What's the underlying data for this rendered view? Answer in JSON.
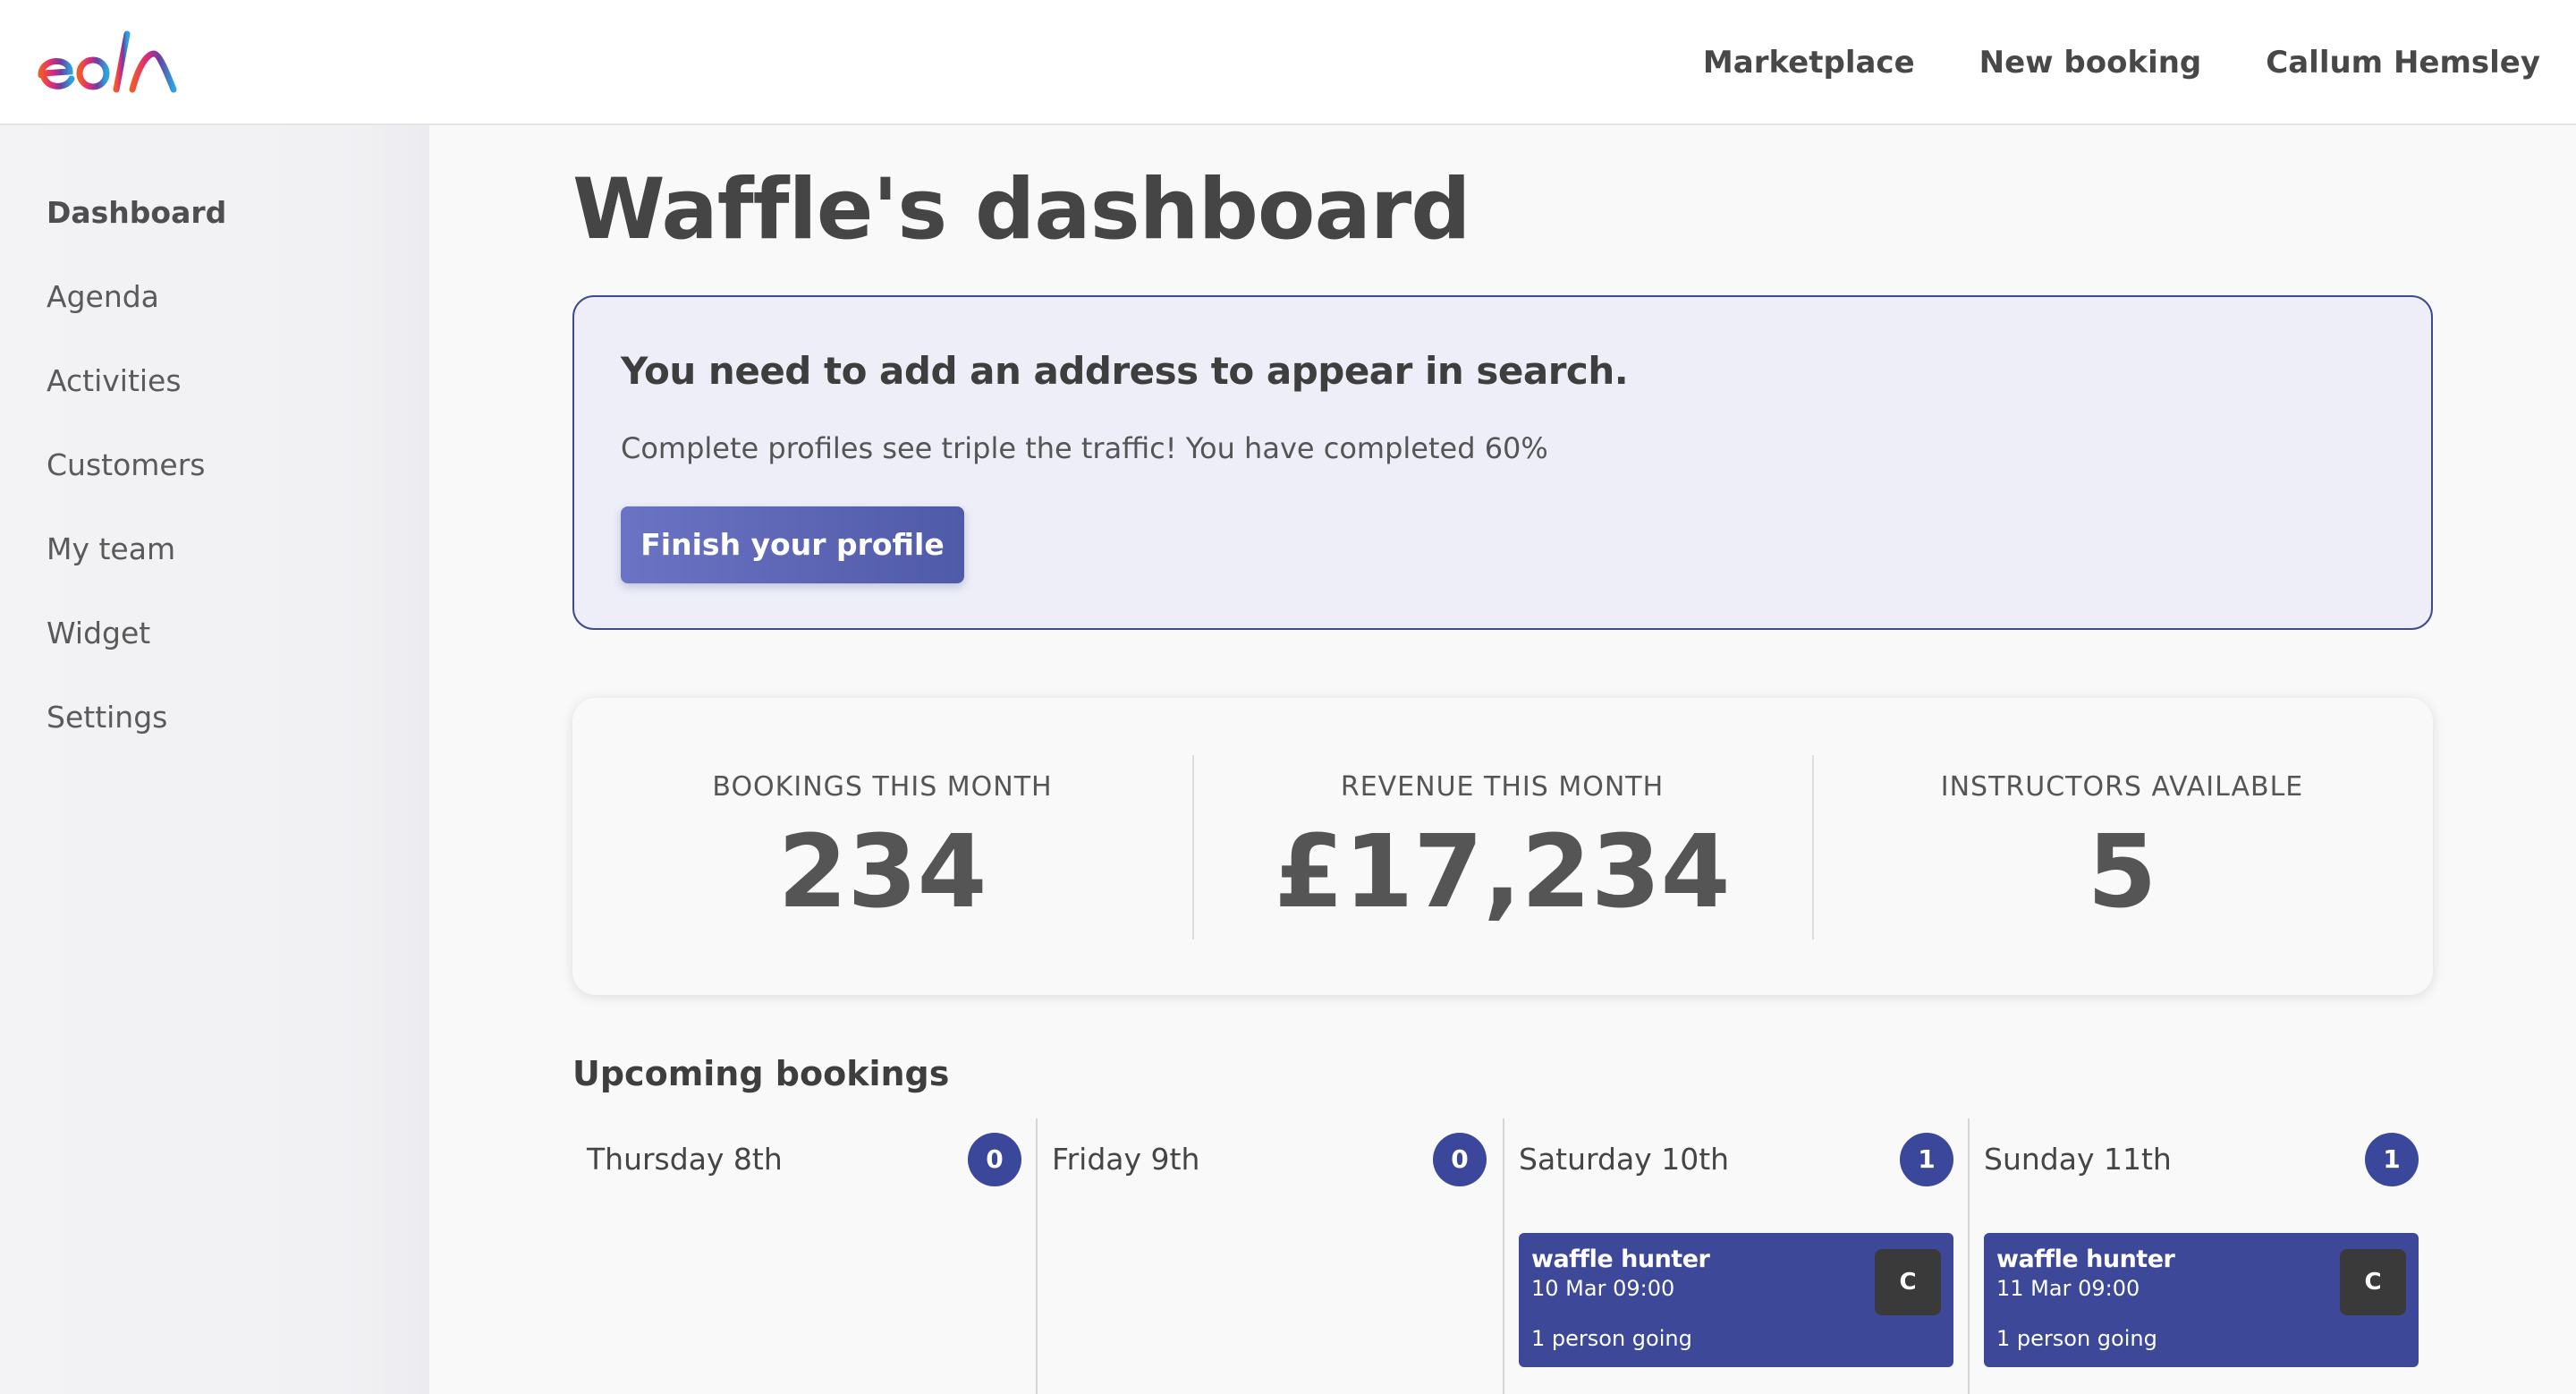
{
  "brand": {
    "logo_text": "eola",
    "colors": [
      "#f05a28",
      "#e0287d",
      "#6b3fa0",
      "#2aa3e0"
    ]
  },
  "topnav": {
    "marketplace": "Marketplace",
    "new_booking": "New booking",
    "user_name": "Callum Hemsley"
  },
  "sidebar": {
    "items": [
      {
        "label": "Dashboard"
      },
      {
        "label": "Agenda"
      },
      {
        "label": "Activities"
      },
      {
        "label": "Customers"
      },
      {
        "label": "My team"
      },
      {
        "label": "Widget"
      },
      {
        "label": "Settings"
      }
    ],
    "active": "Dashboard"
  },
  "page": {
    "title": "Waffle's dashboard"
  },
  "alert": {
    "title": "You need to add an address to appear in search.",
    "text": "Complete profiles see triple the traffic! You have completed 60%",
    "button_label": "Finish your profile",
    "completion_percent": 60
  },
  "stats": [
    {
      "label": "BOOKINGS THIS MONTH",
      "value": "234"
    },
    {
      "label": "REVENUE THIS MONTH",
      "value": "£17,234"
    },
    {
      "label": "INSTRUCTORS AVAILABLE",
      "value": "5"
    }
  ],
  "upcoming": {
    "title": "Upcoming bookings",
    "days": [
      {
        "name": "Thursday 8th",
        "count": "0",
        "bookings": []
      },
      {
        "name": "Friday 9th",
        "count": "0",
        "bookings": []
      },
      {
        "name": "Saturday 10th",
        "count": "1",
        "bookings": [
          {
            "title": "waffle hunter",
            "date": "10 Mar 09:00",
            "going": "1 person going",
            "avatar": "C"
          }
        ]
      },
      {
        "name": "Sunday 11th",
        "count": "1",
        "bookings": [
          {
            "title": "waffle hunter",
            "date": "11 Mar 09:00",
            "going": "1 person going",
            "avatar": "C"
          }
        ]
      }
    ]
  }
}
